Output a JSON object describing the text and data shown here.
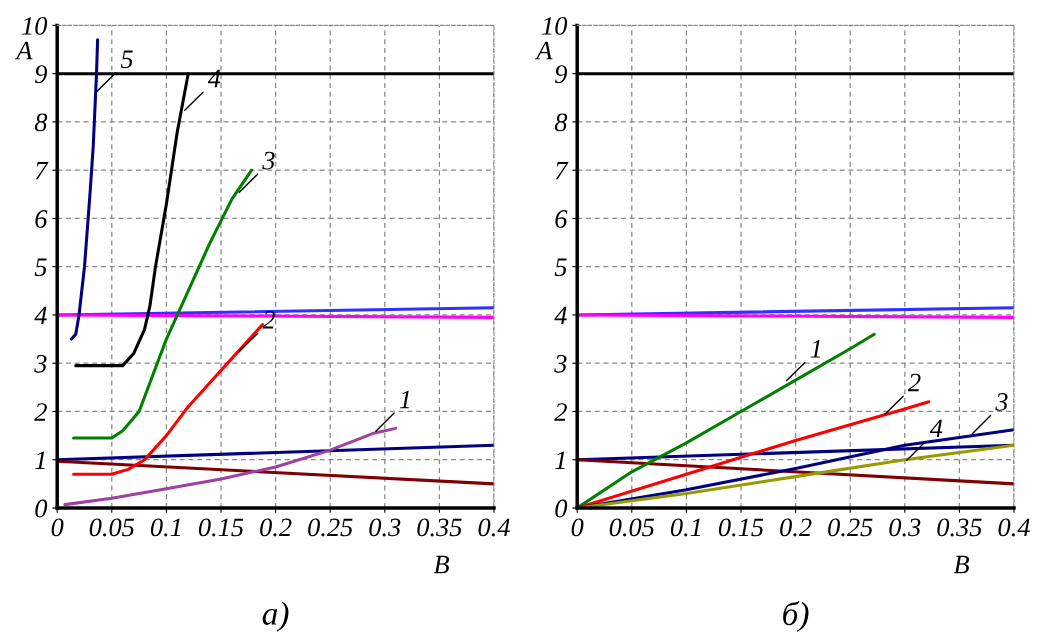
{
  "chart_data": [
    {
      "type": "line",
      "title": "а)",
      "xlabel": "B",
      "ylabel": "A",
      "xlim": [
        0,
        0.4
      ],
      "ylim": [
        0,
        10
      ],
      "xticks": [
        0,
        0.05,
        0.1,
        0.15,
        0.2,
        0.25,
        0.3,
        0.35,
        0.4
      ],
      "yticks": [
        0,
        1,
        2,
        3,
        4,
        5,
        6,
        7,
        8,
        9,
        10
      ],
      "grid": true,
      "line_style": "solid",
      "marker": "none",
      "series": [
        {
          "color": "#000000",
          "x": [
            0,
            0.4
          ],
          "values": [
            9,
            9
          ]
        },
        {
          "color": "#3030ff",
          "x": [
            0,
            0.4
          ],
          "values": [
            4.0,
            4.15
          ]
        },
        {
          "color": "#ff00ff",
          "x": [
            0,
            0.4
          ],
          "values": [
            4.0,
            3.95
          ]
        },
        {
          "color": "#000080",
          "x": [
            0,
            0.4
          ],
          "values": [
            1.0,
            1.3
          ]
        },
        {
          "color": "#800000",
          "x": [
            0,
            0.4
          ],
          "values": [
            0.97,
            0.5
          ]
        },
        {
          "color": "#000080",
          "x": [
            0.013,
            0.017,
            0.02,
            0.025,
            0.03,
            0.033,
            0.035,
            0.036,
            0.037
          ],
          "values": [
            3.5,
            3.6,
            4.0,
            5.0,
            6.5,
            7.5,
            8.5,
            9.0,
            9.7
          ]
        },
        {
          "color": "#000000",
          "x": [
            0.017,
            0.06,
            0.07,
            0.08,
            0.085,
            0.09,
            0.1,
            0.11,
            0.12
          ],
          "values": [
            2.95,
            2.95,
            3.2,
            3.7,
            4.2,
            5.0,
            6.3,
            7.8,
            9.0
          ]
        },
        {
          "color": "#008000",
          "x": [
            0.015,
            0.05,
            0.06,
            0.075,
            0.085,
            0.1,
            0.12,
            0.14,
            0.16,
            0.178
          ],
          "values": [
            1.45,
            1.45,
            1.6,
            2.0,
            2.6,
            3.5,
            4.5,
            5.5,
            6.4,
            7.0
          ]
        },
        {
          "color": "#ff0000",
          "x": [
            0.015,
            0.05,
            0.065,
            0.08,
            0.1,
            0.12,
            0.14,
            0.16,
            0.18,
            0.188
          ],
          "values": [
            0.7,
            0.7,
            0.8,
            1.0,
            1.5,
            2.1,
            2.6,
            3.1,
            3.6,
            3.8
          ]
        },
        {
          "color": "#a040a0",
          "x": [
            0.007,
            0.05,
            0.1,
            0.15,
            0.2,
            0.25,
            0.29,
            0.31
          ],
          "values": [
            0.07,
            0.2,
            0.4,
            0.6,
            0.85,
            1.2,
            1.55,
            1.65
          ]
        }
      ],
      "annotations": [
        {
          "text": "5",
          "x": 0.035,
          "y": 8.6
        },
        {
          "text": "4",
          "x": 0.115,
          "y": 8.2
        },
        {
          "text": "3",
          "x": 0.165,
          "y": 6.5
        },
        {
          "text": "2",
          "x": 0.165,
          "y": 3.2
        },
        {
          "text": "1",
          "x": 0.29,
          "y": 1.55
        }
      ]
    },
    {
      "type": "line",
      "title": "б)",
      "xlabel": "B",
      "ylabel": "A",
      "xlim": [
        0,
        0.4
      ],
      "ylim": [
        0,
        10
      ],
      "xticks": [
        0,
        0.05,
        0.1,
        0.15,
        0.2,
        0.25,
        0.3,
        0.35,
        0.4
      ],
      "yticks": [
        0,
        1,
        2,
        3,
        4,
        5,
        6,
        7,
        8,
        9,
        10
      ],
      "grid": true,
      "line_style": "solid",
      "marker": "none",
      "series": [
        {
          "color": "#000000",
          "x": [
            0,
            0.4
          ],
          "values": [
            9,
            9
          ]
        },
        {
          "color": "#3030ff",
          "x": [
            0,
            0.4
          ],
          "values": [
            4.0,
            4.15
          ]
        },
        {
          "color": "#ff00ff",
          "x": [
            0,
            0.4
          ],
          "values": [
            4.0,
            3.95
          ]
        },
        {
          "color": "#000080",
          "x": [
            0,
            0.4
          ],
          "values": [
            1.0,
            1.3
          ]
        },
        {
          "color": "#800000",
          "x": [
            0,
            0.4
          ],
          "values": [
            1.0,
            0.5
          ]
        },
        {
          "color": "#008000",
          "x": [
            0,
            0.05,
            0.1,
            0.15,
            0.2,
            0.25,
            0.272
          ],
          "values": [
            0,
            0.75,
            1.35,
            2.0,
            2.65,
            3.3,
            3.6
          ]
        },
        {
          "color": "#ff0000",
          "x": [
            0,
            0.1,
            0.2,
            0.3,
            0.322
          ],
          "values": [
            0,
            0.7,
            1.4,
            2.05,
            2.2
          ]
        },
        {
          "color": "#000080",
          "x": [
            0,
            0.1,
            0.2,
            0.3,
            0.4
          ],
          "values": [
            0,
            0.38,
            0.82,
            1.3,
            1.62
          ]
        },
        {
          "color": "#999900",
          "x": [
            0,
            0.1,
            0.2,
            0.3,
            0.4
          ],
          "values": [
            0,
            0.3,
            0.65,
            1.0,
            1.3
          ]
        }
      ],
      "annotations": [
        {
          "text": "1",
          "x": 0.19,
          "y": 2.6
        },
        {
          "text": "2",
          "x": 0.28,
          "y": 1.9
        },
        {
          "text": "3",
          "x": 0.36,
          "y": 1.5
        },
        {
          "text": "4",
          "x": 0.3,
          "y": 0.95
        }
      ]
    }
  ]
}
